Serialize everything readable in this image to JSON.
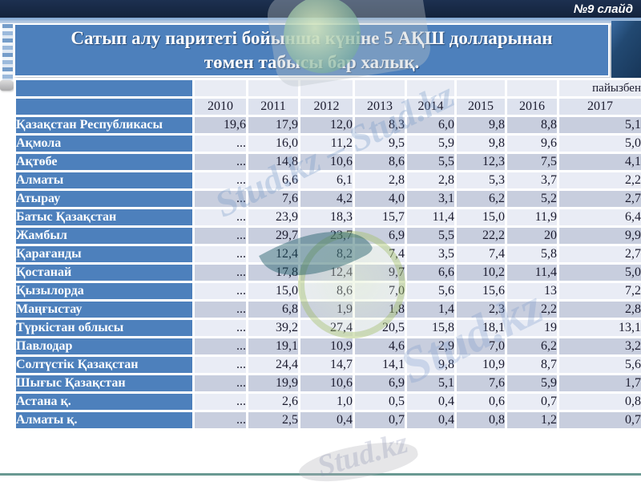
{
  "slide": {
    "badge": "№9 слайд",
    "title_line1": "Сатып алу паритеті бойынша күніне 5 АҚШ  долларынан",
    "title_line2": "төмен табысы бар халық."
  },
  "watermarks": {
    "diag1": "Stud.kz – Stud.kz",
    "diag2": "Stud.kz",
    "diag3": "Stud.kz"
  },
  "chart_data": {
    "type": "table",
    "title": "Сатып алу паритеті бойынша күніне 5 АҚШ долларынан төмен табысы бар халық.",
    "unit_label": "пайызбен",
    "columns": [
      "2010",
      "2011",
      "2012",
      "2013",
      "2014",
      "2015",
      "2016",
      "2017"
    ],
    "rows": [
      {
        "name": "Қазақстан Республикасы",
        "values": [
          "19,6",
          "17,9",
          "12,0",
          "8,3",
          "6,0",
          "9,8",
          "8,8",
          "5,1"
        ]
      },
      {
        "name": "Ақмола",
        "values": [
          "...",
          "16,0",
          "11,2",
          "9,5",
          "5,9",
          "9,8",
          "9,6",
          "5,0"
        ]
      },
      {
        "name": "Ақтөбе",
        "values": [
          "...",
          "14,8",
          "10,6",
          "8,6",
          "5,5",
          "12,3",
          "7,5",
          "4,1"
        ]
      },
      {
        "name": "Алматы",
        "values": [
          "...",
          "6,6",
          "6,1",
          "2,8",
          "2,8",
          "5,3",
          "3,7",
          "2,2"
        ]
      },
      {
        "name": "Атырау",
        "values": [
          "...",
          "7,6",
          "4,2",
          "4,0",
          "3,1",
          "6,2",
          "5,2",
          "2,7"
        ]
      },
      {
        "name": "Батыс Қазақстан",
        "values": [
          "...",
          "23,9",
          "18,3",
          "15,7",
          "11,4",
          "15,0",
          "11,9",
          "6,4"
        ]
      },
      {
        "name": "Жамбыл",
        "values": [
          "...",
          "29,7",
          "23,7",
          "6,9",
          "5,5",
          "22,2",
          "20",
          "9,9"
        ]
      },
      {
        "name": "Қарағанды",
        "values": [
          "...",
          "12,4",
          "8,2",
          "7,4",
          "3,5",
          "7,4",
          "5,8",
          "2,7"
        ]
      },
      {
        "name": "Қостанай",
        "values": [
          "...",
          "17,8",
          "12,4",
          "9,7",
          "6,6",
          "10,2",
          "11,4",
          "5,0"
        ]
      },
      {
        "name": "Қызылорда",
        "values": [
          "...",
          "15,0",
          "8,6",
          "7,0",
          "5,6",
          "15,6",
          "13",
          "7,2"
        ]
      },
      {
        "name": "Маңғыстау",
        "values": [
          "...",
          "6,8",
          "1,9",
          "1,8",
          "1,4",
          "2,3",
          "2,2",
          "2,8"
        ]
      },
      {
        "name": "Түркістан облысы",
        "values": [
          "...",
          "39,2",
          "27,4",
          "20,5",
          "15,8",
          "18,1",
          "19",
          "13,1"
        ]
      },
      {
        "name": "Павлодар",
        "values": [
          "...",
          "19,1",
          "10,9",
          "4,6",
          "2,9",
          "7,0",
          "6,2",
          "3,2"
        ]
      },
      {
        "name": "Солтүстік Қазақстан",
        "values": [
          "...",
          "24,4",
          "14,7",
          "14,1",
          "9,8",
          "10,9",
          "8,7",
          "5,6"
        ]
      },
      {
        "name": "Шығыс Қазақстан",
        "values": [
          "...",
          "19,9",
          "10,6",
          "6,9",
          "5,1",
          "7,6",
          "5,9",
          "1,7"
        ]
      },
      {
        "name": "Астана қ.",
        "values": [
          "...",
          "2,6",
          "1,0",
          "0,5",
          "0,4",
          "0,6",
          "0,7",
          "0,8"
        ]
      },
      {
        "name": "Алматы қ.",
        "values": [
          "...",
          "2,5",
          "0,4",
          "0,7",
          "0,4",
          "0,8",
          "1,2",
          "0,7"
        ]
      }
    ]
  }
}
